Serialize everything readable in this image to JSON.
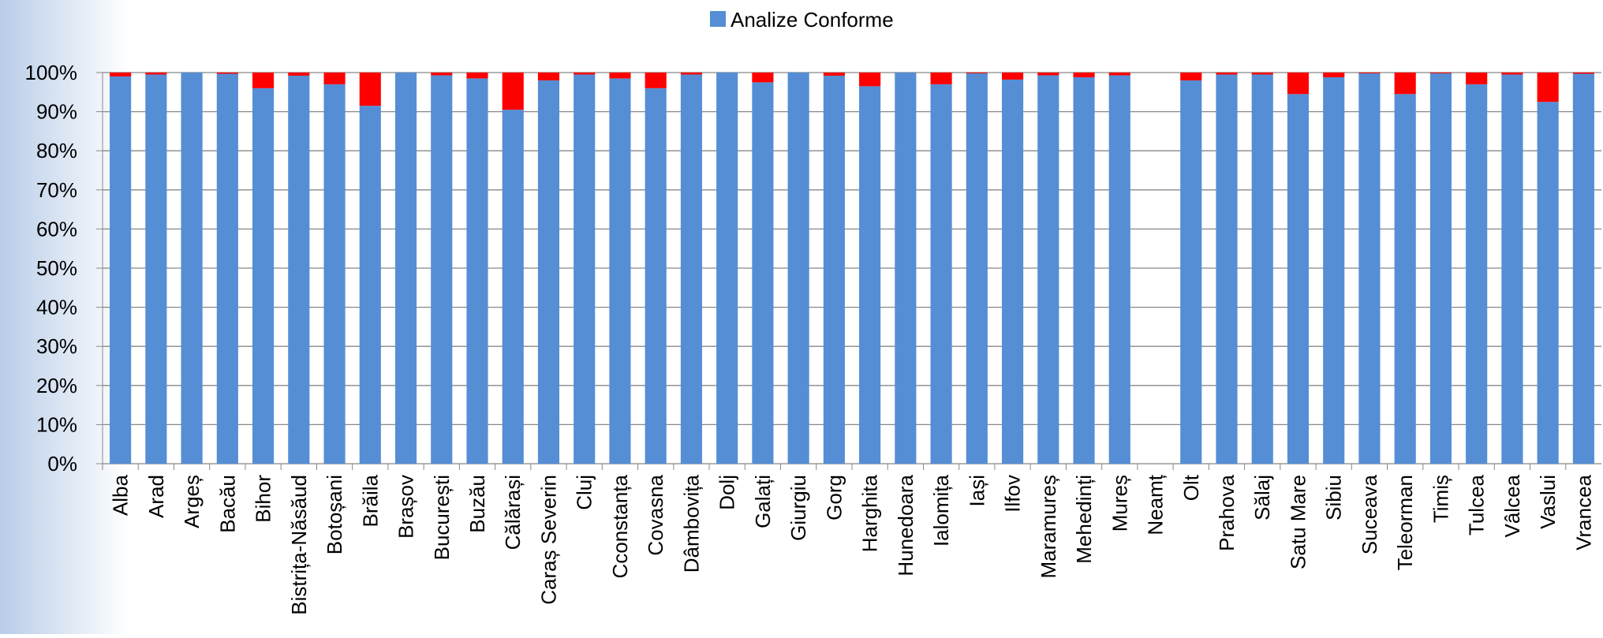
{
  "chart_data": {
    "type": "stacked_bar",
    "categories": [
      "Alba",
      "Arad",
      "Argeș",
      "Bacău",
      "Bihor",
      "Bistrița-Năsăud",
      "Botoșani",
      "Brăila",
      "Brașov",
      "București",
      "Buzău",
      "Călărași",
      "Caraș Severin",
      "Cluj",
      "Cconstanța",
      "Covasna",
      "Dâmbovița",
      "Dolj",
      "Galați",
      "Giurgiu",
      "Gorg",
      "Harghita",
      "Hunedoara",
      "Ialomița",
      "Iași",
      "Ilfov",
      "Maramureș",
      "Mehedinți",
      "Mureș",
      "Neamț",
      "Olt",
      "Prahova",
      "Sălaj",
      "Satu Mare",
      "Sibiu",
      "Suceava",
      "Teleorman",
      "Timiș",
      "Tulcea",
      "Vâlcea",
      "Vaslui",
      "Vrancea"
    ],
    "series": [
      {
        "name": "Analize Conforme",
        "color": "#558ed5",
        "values": [
          99,
          99.5,
          100,
          99.7,
          96,
          99.2,
          97,
          91.5,
          100,
          99.3,
          98.5,
          90.5,
          98,
          99.5,
          98.5,
          96,
          99.5,
          100,
          97.5,
          100,
          99.2,
          96.5,
          100,
          97,
          99.8,
          98.2,
          99.3,
          98.8,
          99.3,
          null,
          98,
          99.5,
          99.5,
          94.5,
          98.8,
          99.8,
          94.5,
          99.8,
          97,
          99.5,
          92.5,
          99.7
        ]
      },
      {
        "color": "#ff0000",
        "values": [
          1,
          0.5,
          0,
          0.3,
          4,
          0.8,
          3,
          8.5,
          0,
          0.7,
          1.5,
          9.5,
          2,
          0.5,
          1.5,
          4,
          0.5,
          0,
          2.5,
          0,
          0.8,
          3.5,
          0,
          3,
          0.2,
          1.8,
          0.7,
          1.2,
          0.7,
          null,
          2,
          0.5,
          0.5,
          5.5,
          1.2,
          0.2,
          5.5,
          0.2,
          3,
          0.5,
          7.5,
          0.3
        ]
      }
    ],
    "ylim": [
      0,
      100
    ],
    "yticks": [
      {
        "value": 0,
        "label": "0%"
      },
      {
        "value": 10,
        "label": "10%"
      },
      {
        "value": 20,
        "label": "20%"
      },
      {
        "value": 30,
        "label": "30%"
      },
      {
        "value": 40,
        "label": "40%"
      },
      {
        "value": 50,
        "label": "50%"
      },
      {
        "value": 60,
        "label": "60%"
      },
      {
        "value": 70,
        "label": "70%"
      },
      {
        "value": 80,
        "label": "80%"
      },
      {
        "value": 90,
        "label": "90%"
      },
      {
        "value": 100,
        "label": "100%"
      }
    ],
    "grid": true,
    "legend": "top"
  }
}
